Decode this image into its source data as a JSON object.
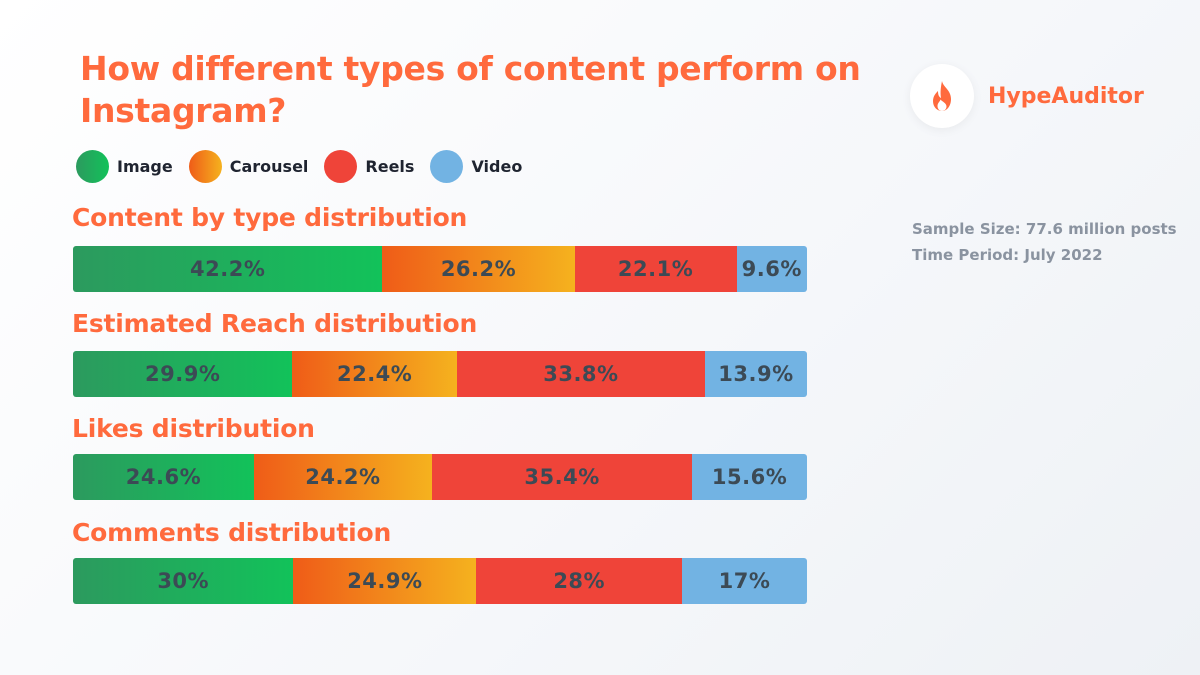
{
  "title": "How different types of content perform on Instagram?",
  "brand": {
    "name": "HypeAuditor",
    "icon": "flame-icon"
  },
  "legend": [
    {
      "label": "Image",
      "color": "#12c25a"
    },
    {
      "label": "Carousel",
      "color": "#f29a1a"
    },
    {
      "label": "Reels",
      "color": "#ef4439"
    },
    {
      "label": "Video",
      "color": "#72b3e3"
    }
  ],
  "meta": {
    "sample_size": "Sample Size: 77.6 million posts",
    "time_period": "Time Period: July 2022"
  },
  "chart_data": {
    "type": "bar",
    "orientation": "horizontal-stacked-100",
    "series_order": [
      "Image",
      "Carousel",
      "Reels",
      "Video"
    ],
    "rows": [
      {
        "title": "Content by type distribution",
        "values": [
          42.2,
          26.2,
          22.1,
          9.6
        ],
        "labels": [
          "42.2%",
          "26.2%",
          "22.1%",
          "9.6%"
        ]
      },
      {
        "title": "Estimated Reach distribution",
        "values": [
          29.9,
          22.4,
          33.8,
          13.9
        ],
        "labels": [
          "29.9%",
          "22.4%",
          "33.8%",
          "13.9%"
        ]
      },
      {
        "title": "Likes distribution",
        "values": [
          24.6,
          24.2,
          35.4,
          15.6
        ],
        "labels": [
          "24.6%",
          "24.2%",
          "35.4%",
          "15.6%"
        ]
      },
      {
        "title": "Comments distribution",
        "values": [
          30,
          24.9,
          28,
          17
        ],
        "labels": [
          "30%",
          "24.9%",
          "28%",
          "17%"
        ]
      }
    ]
  }
}
